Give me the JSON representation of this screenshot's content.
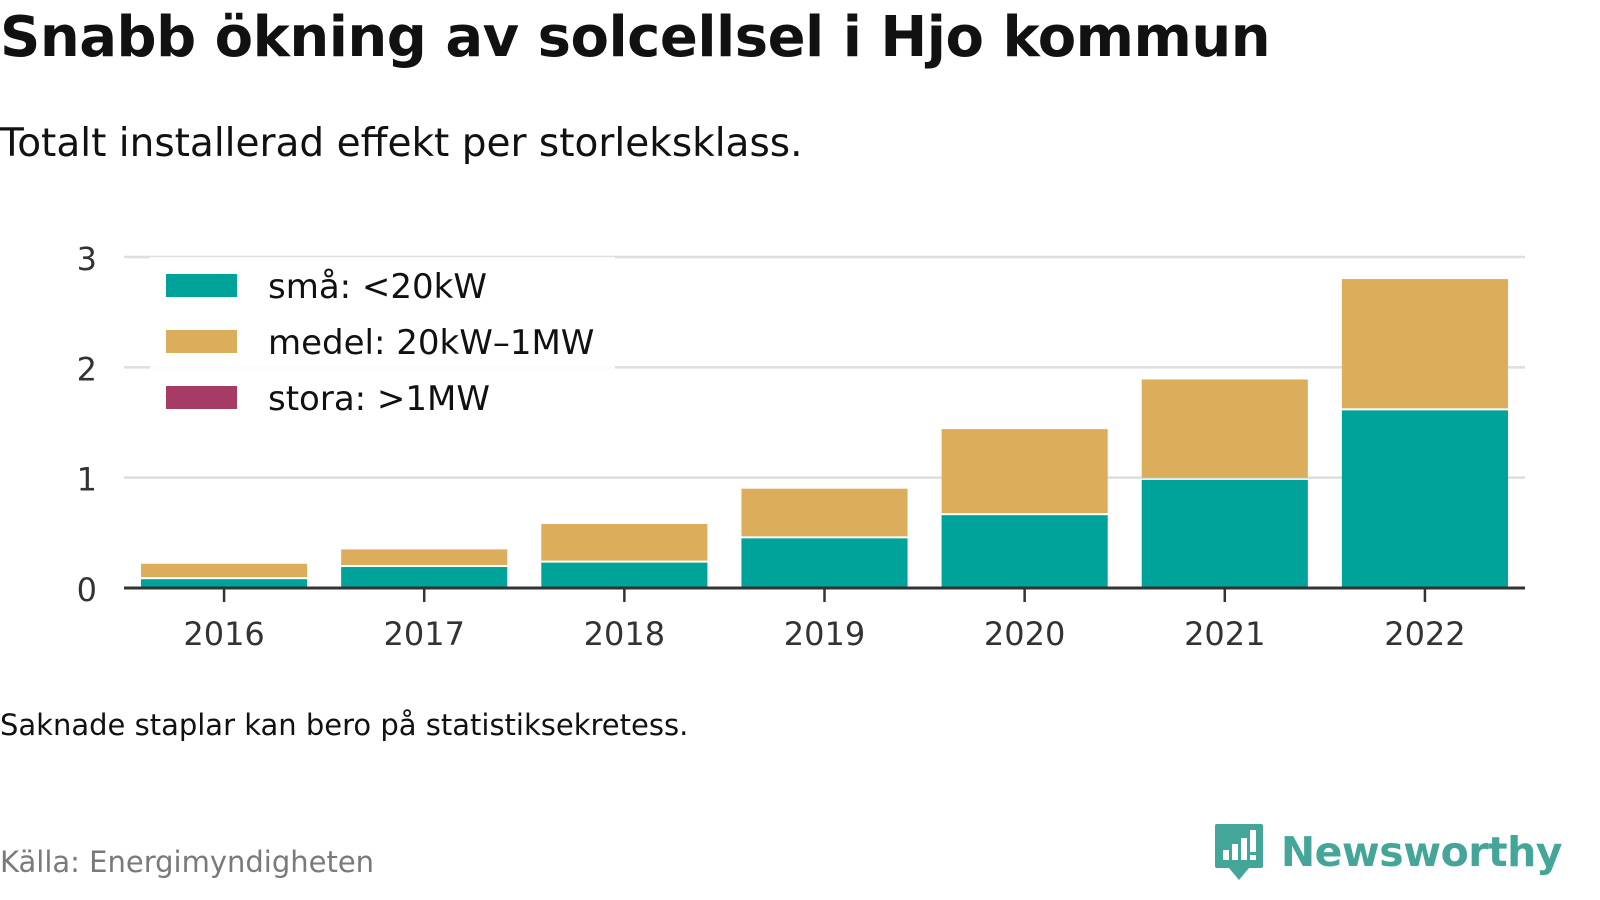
{
  "title": "Snabb ökning av solcellsel i Hjo kommun",
  "subtitle": "Totalt installerad effekt per storleksklass.",
  "note": "Saknade staplar kan bero på statistiksekretess.",
  "source": "Källa: Energimyndigheten",
  "brand": {
    "name": "Newsworthy",
    "icon": "newsworthy-logo-icon",
    "color": "#43a698"
  },
  "chart_data": {
    "type": "bar",
    "stacked": true,
    "title": "",
    "xlabel": "",
    "ylabel": "",
    "categories": [
      "2016",
      "2017",
      "2018",
      "2019",
      "2020",
      "2021",
      "2022"
    ],
    "ylim": [
      0,
      3
    ],
    "yticks": [
      "0",
      "1",
      "2",
      "3"
    ],
    "grid": true,
    "legend_position": "top-left",
    "series": [
      {
        "name": "små: <20kW",
        "color": "#00a39a",
        "values": [
          0.08,
          0.19,
          0.23,
          0.45,
          0.66,
          0.98,
          1.61
        ]
      },
      {
        "name": "medel: 20kW–1MW",
        "color": "#dcae5c",
        "values": [
          0.14,
          0.16,
          0.35,
          0.45,
          0.78,
          0.91,
          1.19
        ]
      },
      {
        "name": "stora: >1MW",
        "color": "#a63c66",
        "values": [
          0,
          0,
          0,
          0,
          0,
          0,
          0
        ]
      }
    ]
  }
}
